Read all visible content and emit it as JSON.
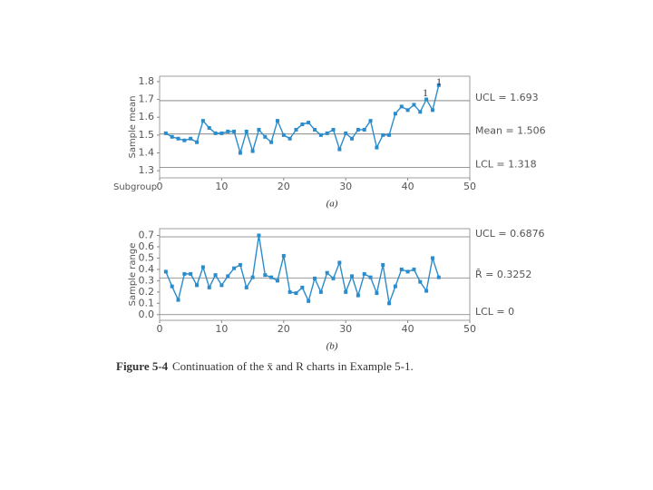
{
  "chart_data": [
    {
      "type": "line",
      "caption": "(a)",
      "x_label": "Subgroup",
      "y_label": "Sample mean",
      "color": "#2a8ccc",
      "x": [
        1,
        2,
        3,
        4,
        5,
        6,
        7,
        8,
        9,
        10,
        11,
        12,
        13,
        14,
        15,
        16,
        17,
        18,
        19,
        20,
        21,
        22,
        23,
        24,
        25,
        26,
        27,
        28,
        29,
        30,
        31,
        32,
        33,
        34,
        35,
        36,
        37,
        38,
        39,
        40,
        41,
        42,
        43,
        44,
        45
      ],
      "values": [
        1.51,
        1.49,
        1.48,
        1.47,
        1.48,
        1.46,
        1.58,
        1.54,
        1.51,
        1.51,
        1.52,
        1.52,
        1.4,
        1.52,
        1.41,
        1.53,
        1.49,
        1.46,
        1.58,
        1.5,
        1.48,
        1.53,
        1.56,
        1.57,
        1.53,
        1.5,
        1.51,
        1.53,
        1.42,
        1.51,
        1.48,
        1.53,
        1.53,
        1.58,
        1.43,
        1.5,
        1.5,
        1.62,
        1.66,
        1.64,
        1.67,
        1.63,
        1.7,
        1.64,
        1.78
      ],
      "xlim": [
        0,
        50
      ],
      "ylim": [
        1.26,
        1.83
      ],
      "xticks": [
        0,
        10,
        20,
        30,
        40,
        50
      ],
      "yticks": [
        1.3,
        1.4,
        1.5,
        1.6,
        1.7,
        1.8
      ],
      "control_lines": [
        {
          "label": "UCL = 1.693",
          "value": 1.693
        },
        {
          "label": "Mean = 1.506",
          "value": 1.506
        },
        {
          "label": "LCL = 1.318",
          "value": 1.318
        }
      ],
      "annotations": [
        "1",
        "1"
      ]
    },
    {
      "type": "line",
      "caption": "(b)",
      "y_label": "Sample range",
      "color": "#2a8ccc",
      "x": [
        1,
        2,
        3,
        4,
        5,
        6,
        7,
        8,
        9,
        10,
        11,
        12,
        13,
        14,
        15,
        16,
        17,
        18,
        19,
        20,
        21,
        22,
        23,
        24,
        25,
        26,
        27,
        28,
        29,
        30,
        31,
        32,
        33,
        34,
        35,
        36,
        37,
        38,
        39,
        40,
        41,
        42,
        43,
        44,
        45
      ],
      "values": [
        0.38,
        0.25,
        0.13,
        0.36,
        0.36,
        0.26,
        0.42,
        0.24,
        0.35,
        0.26,
        0.34,
        0.41,
        0.44,
        0.24,
        0.33,
        0.7,
        0.35,
        0.33,
        0.3,
        0.52,
        0.2,
        0.19,
        0.24,
        0.12,
        0.32,
        0.2,
        0.37,
        0.32,
        0.46,
        0.2,
        0.34,
        0.17,
        0.36,
        0.33,
        0.19,
        0.44,
        0.1,
        0.25,
        0.4,
        0.38,
        0.4,
        0.29,
        0.21,
        0.5,
        0.33
      ],
      "xlim": [
        0,
        50
      ],
      "ylim": [
        -0.05,
        0.76
      ],
      "xticks": [
        0,
        10,
        20,
        30,
        40,
        50
      ],
      "yticks": [
        {
          "value": 0,
          "label": "0.0"
        },
        0.1,
        0.2,
        0.3,
        0.4,
        0.5,
        0.6,
        0.7
      ],
      "control_lines": [
        {
          "label": "UCL = 0.6876",
          "value": 0.6876
        },
        {
          "label": "R̄ = 0.3252",
          "value": 0.3252
        },
        {
          "label": "LCL = 0",
          "value": 0
        }
      ]
    }
  ],
  "figure_caption": {
    "number": "Figure 5-4",
    "text": "Continuation of the x̄ and R charts in Example 5-1."
  }
}
